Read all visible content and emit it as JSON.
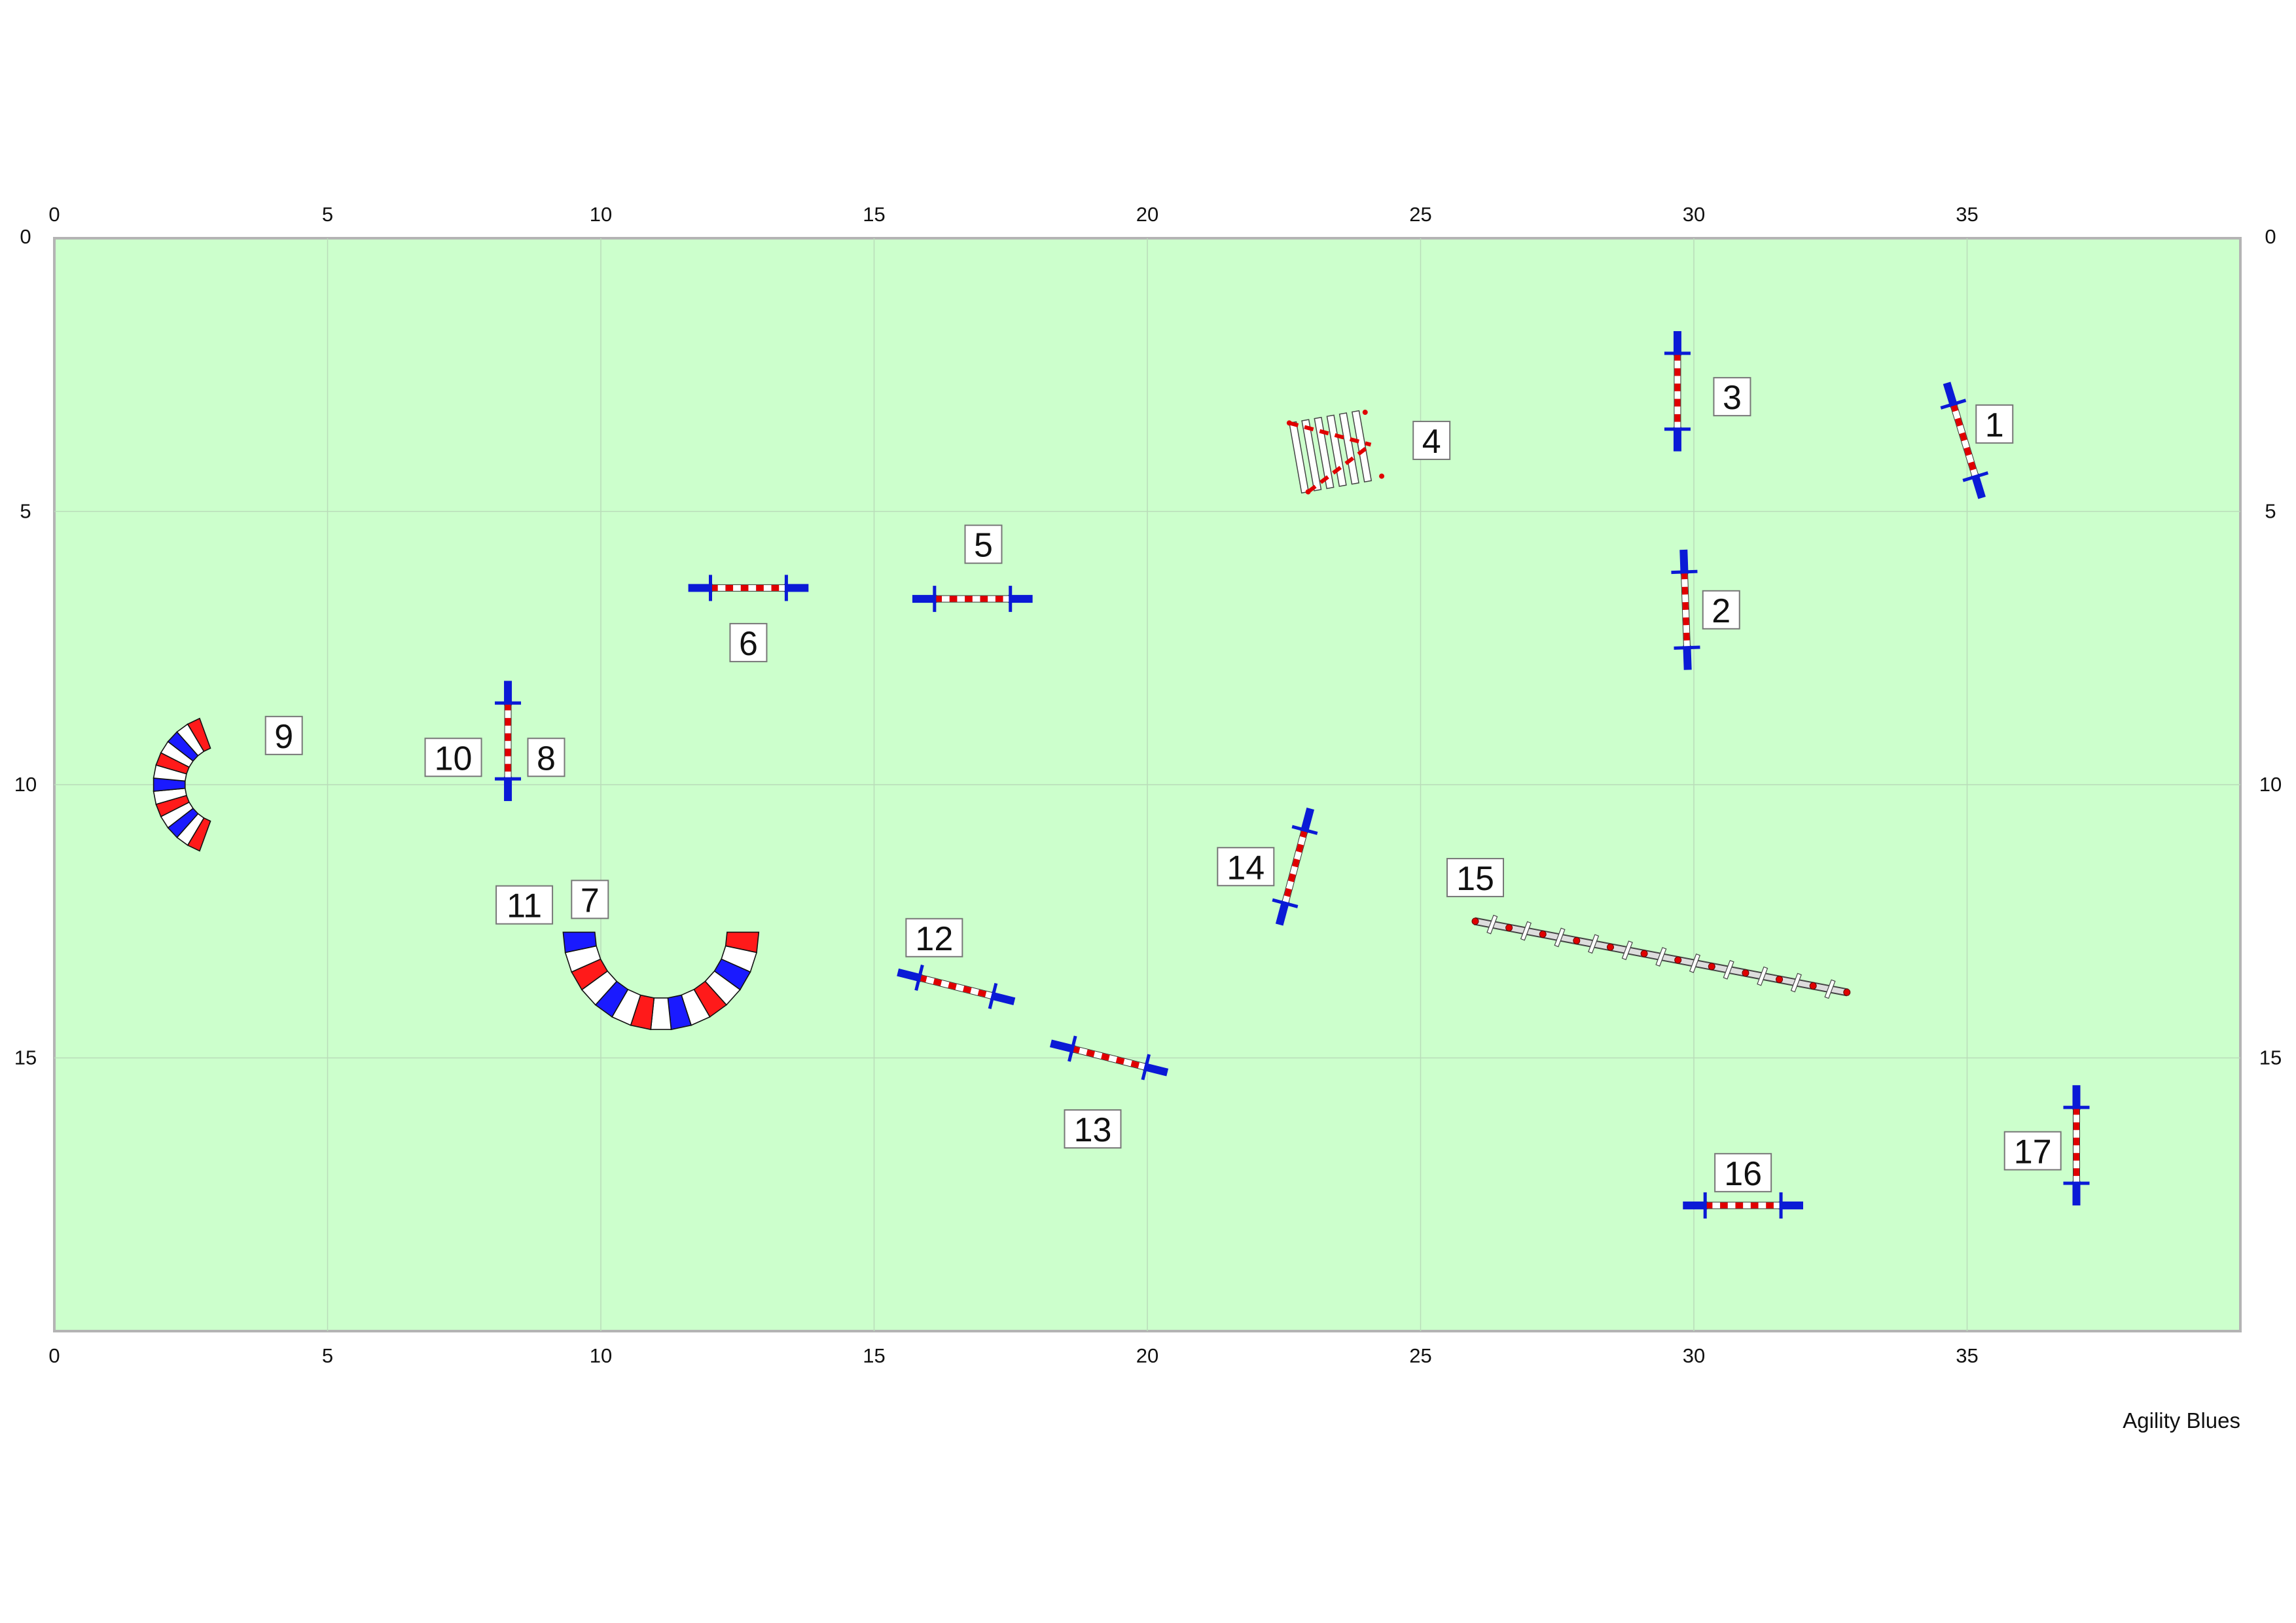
{
  "course": {
    "designer": "Agility Blues",
    "ring_size_m": [
      40,
      20
    ],
    "grid_step_m": 5,
    "axis_ticks_x": [
      "0",
      "5",
      "10",
      "15",
      "20",
      "25",
      "30",
      "35"
    ],
    "axis_ticks_y": [
      "0",
      "5",
      "10",
      "15"
    ],
    "colors": {
      "field": "#ccffcc",
      "grid": "#b9dcb9",
      "border": "#b4b4b4",
      "wing": "#0a1ad6",
      "bar_red": "#e00000",
      "bar_white": "#ffffff",
      "label_border": "#777777"
    }
  },
  "chart_data": {
    "type": "diagram",
    "x_range": [
      0,
      40
    ],
    "y_range": [
      0,
      20
    ],
    "obstacles": [
      {
        "kind": "jump",
        "x": 34.95,
        "y": 3.7,
        "angle": 73,
        "length": 2.2
      },
      {
        "kind": "jump",
        "x": 29.85,
        "y": 6.8,
        "angle": 88,
        "length": 2.2
      },
      {
        "kind": "jump",
        "x": 29.7,
        "y": 2.8,
        "angle": 90,
        "length": 2.2
      },
      {
        "kind": "jump",
        "x": 16.8,
        "y": 6.6,
        "angle": 0,
        "length": 2.2
      },
      {
        "kind": "jump",
        "x": 12.7,
        "y": 6.4,
        "angle": 0,
        "length": 2.2
      },
      {
        "kind": "jump",
        "x": 8.3,
        "y": 9.2,
        "angle": 90,
        "length": 2.2
      },
      {
        "kind": "jump",
        "x": 16.5,
        "y": 13.7,
        "angle": 14,
        "length": 2.2
      },
      {
        "kind": "jump",
        "x": 19.3,
        "y": 15.0,
        "angle": 14,
        "length": 2.2
      },
      {
        "kind": "jump",
        "x": 22.7,
        "y": 11.5,
        "angle": 105,
        "length": 2.2
      },
      {
        "kind": "jump",
        "x": 30.9,
        "y": 17.7,
        "angle": 0,
        "length": 2.2
      },
      {
        "kind": "jump",
        "x": 37.0,
        "y": 16.6,
        "angle": 90,
        "length": 2.2
      },
      {
        "kind": "tire_spread",
        "x": 23.4,
        "y": 3.9,
        "angle": -10,
        "length": 1.4,
        "width": 1.3
      },
      {
        "kind": "dogwalk",
        "x1": 26.0,
        "y1": 12.5,
        "x2": 32.8,
        "y2": 13.8,
        "posts": 12
      },
      {
        "kind": "tunnel",
        "cx": 3.1,
        "cy": 10.0,
        "r": 1.0,
        "start_deg": -70,
        "end_deg": 70,
        "segments": 13,
        "colors": [
          "#ff1a1a",
          "#ffffff",
          "#1a1aff",
          "#ffffff"
        ]
      },
      {
        "kind": "tunnel",
        "cx": 11.1,
        "cy": 12.7,
        "r": 1.5,
        "start_deg": 0,
        "end_deg": 180,
        "segments": 15,
        "colors": [
          "#ff1a1a",
          "#ffffff",
          "#1a1aff",
          "#ffffff"
        ]
      }
    ],
    "numbers": [
      {
        "label": "1",
        "x": 35.5,
        "y": 3.4
      },
      {
        "label": "2",
        "x": 30.5,
        "y": 6.8
      },
      {
        "label": "3",
        "x": 30.7,
        "y": 2.9
      },
      {
        "label": "4",
        "x": 25.2,
        "y": 3.7
      },
      {
        "label": "5",
        "x": 17.0,
        "y": 5.6
      },
      {
        "label": "6",
        "x": 12.7,
        "y": 7.4
      },
      {
        "label": "7",
        "x": 9.8,
        "y": 12.1
      },
      {
        "label": "8",
        "x": 9.0,
        "y": 9.5
      },
      {
        "label": "9",
        "x": 4.2,
        "y": 9.1
      },
      {
        "label": "10",
        "x": 7.3,
        "y": 9.5
      },
      {
        "label": "11",
        "x": 8.6,
        "y": 12.2
      },
      {
        "label": "12",
        "x": 16.1,
        "y": 12.8
      },
      {
        "label": "13",
        "x": 19.0,
        "y": 16.3
      },
      {
        "label": "14",
        "x": 21.8,
        "y": 11.5
      },
      {
        "label": "15",
        "x": 26.0,
        "y": 11.7
      },
      {
        "label": "16",
        "x": 30.9,
        "y": 17.1
      },
      {
        "label": "17",
        "x": 36.2,
        "y": 16.7
      }
    ]
  }
}
